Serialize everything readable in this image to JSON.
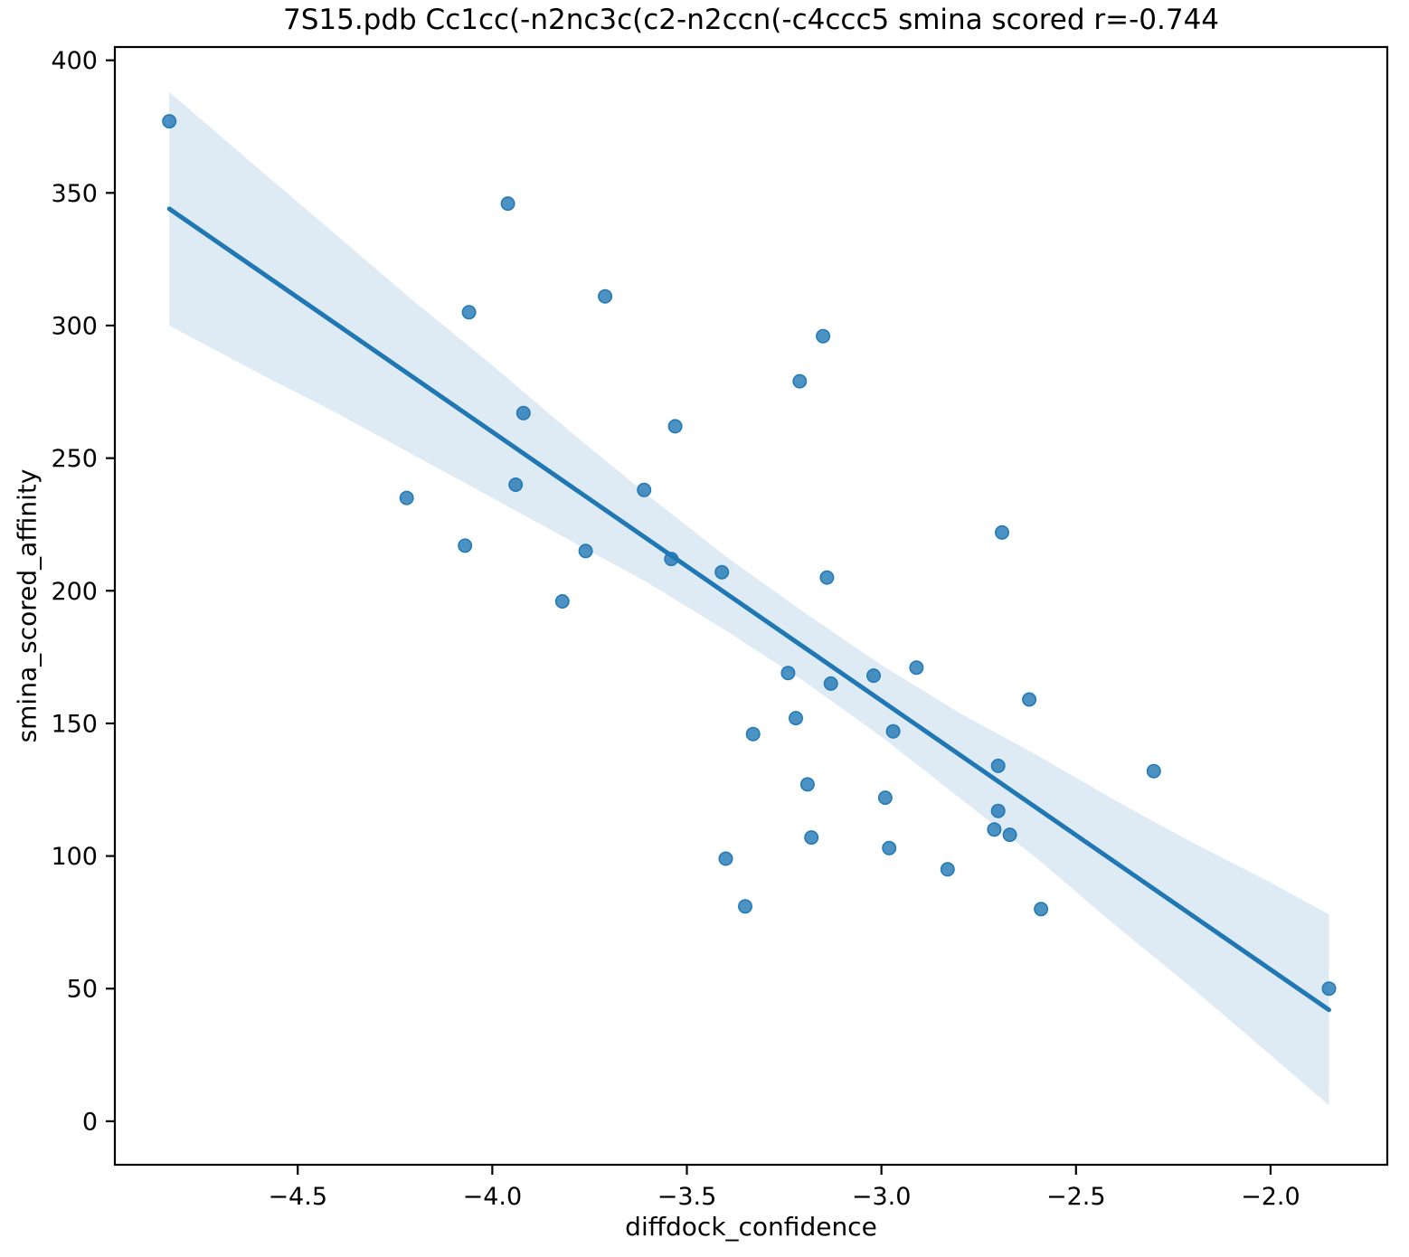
{
  "figure": {
    "background": "#ffffff"
  },
  "chart_data": {
    "type": "scatter",
    "title": "7S15.pdb Cc1cc(-n2nc3c(c2-n2ccn(-c4ccc5 smina scored r=-0.744",
    "xlabel": "diffdock_confidence",
    "ylabel": "smina_scored_affinity",
    "correlation_r": -0.744,
    "xlim": [
      -4.97,
      -1.7
    ],
    "ylim": [
      -16.4,
      405.0
    ],
    "x_ticks": [
      -4.5,
      -4.0,
      -3.5,
      -3.0,
      -2.5,
      -2.0
    ],
    "y_ticks": [
      0,
      50,
      100,
      150,
      200,
      250,
      300,
      350,
      400
    ],
    "grid": false,
    "legend": false,
    "points": [
      [
        -4.83,
        377
      ],
      [
        -4.22,
        235
      ],
      [
        -4.07,
        217
      ],
      [
        -4.06,
        305
      ],
      [
        -3.96,
        346
      ],
      [
        -3.94,
        240
      ],
      [
        -3.92,
        267
      ],
      [
        -3.82,
        196
      ],
      [
        -3.76,
        215
      ],
      [
        -3.71,
        311
      ],
      [
        -3.61,
        238
      ],
      [
        -3.54,
        212
      ],
      [
        -3.53,
        262
      ],
      [
        -3.41,
        207
      ],
      [
        -3.4,
        99
      ],
      [
        -3.35,
        81
      ],
      [
        -3.33,
        146
      ],
      [
        -3.24,
        169
      ],
      [
        -3.22,
        152
      ],
      [
        -3.21,
        279
      ],
      [
        -3.19,
        127
      ],
      [
        -3.18,
        107
      ],
      [
        -3.15,
        296
      ],
      [
        -3.14,
        205
      ],
      [
        -3.13,
        165
      ],
      [
        -3.02,
        168
      ],
      [
        -2.99,
        122
      ],
      [
        -2.98,
        103
      ],
      [
        -2.97,
        147
      ],
      [
        -2.91,
        171
      ],
      [
        -2.83,
        95
      ],
      [
        -2.7,
        134
      ],
      [
        -2.7,
        117
      ],
      [
        -2.71,
        110
      ],
      [
        -2.67,
        108
      ],
      [
        -2.69,
        222
      ],
      [
        -2.62,
        159
      ],
      [
        -2.59,
        80
      ],
      [
        -2.3,
        132
      ],
      [
        -1.85,
        50
      ]
    ],
    "trendline": {
      "x": [
        -4.83,
        -1.85
      ],
      "y": [
        344,
        42
      ]
    },
    "ci_band": {
      "x": [
        -4.83,
        -4.6,
        -4.4,
        -4.2,
        -4.0,
        -3.8,
        -3.6,
        -3.4,
        -3.2,
        -3.0,
        -2.8,
        -2.6,
        -2.4,
        -2.2,
        -2.0,
        -1.85
      ],
      "upper": [
        388,
        359,
        334,
        309,
        285,
        260,
        236,
        213,
        192,
        172,
        154,
        138,
        121,
        105,
        90,
        78
      ],
      "lower": [
        300,
        282,
        267,
        251,
        235,
        219,
        203,
        185,
        166,
        145,
        122,
        99,
        74,
        50,
        25,
        6
      ]
    },
    "colors": {
      "marker": "#1f77b4",
      "marker_opacity": 0.8,
      "line": "#1f77b4",
      "band": "#1f77b4",
      "band_opacity": 0.15,
      "axis": "#000000"
    }
  }
}
